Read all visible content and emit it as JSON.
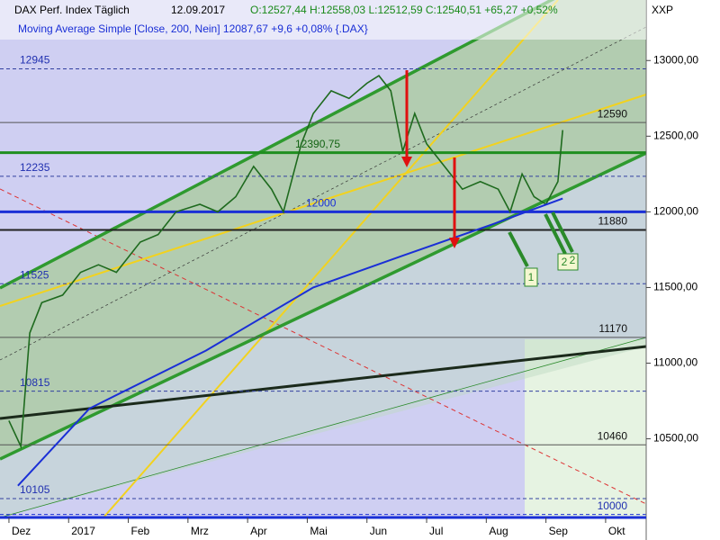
{
  "chart_data": {
    "type": "line",
    "title": "DAX Perf. Index Täglich",
    "date": "12.09.2017",
    "quote": "O:12527,44 H:12558,03 L:12512,59 C:12540,51 +65,27 +0,52%",
    "symbol": "XXP",
    "indicator": "Moving Average Simple [Close, 200, Nein] 12087,67 +9,6 +0,08% {.DAX}",
    "x": [
      0,
      0.2,
      0.35,
      0.55,
      0.9,
      1.2,
      1.5,
      1.8,
      2.2,
      2.5,
      2.8,
      3.2,
      3.5,
      3.8,
      4.1,
      4.4,
      4.6,
      4.9,
      5.1,
      5.4,
      5.7,
      6.0,
      6.2,
      6.4,
      6.6,
      6.8,
      7.0,
      7.3,
      7.6,
      7.9,
      8.2,
      8.4,
      8.6,
      8.8,
      9.0,
      9.2,
      9.28
    ],
    "series": [
      {
        "name": "DAX",
        "color": "#1e6a1e",
        "values": [
          10620,
          10450,
          11200,
          11400,
          11450,
          11600,
          11650,
          11600,
          11800,
          11850,
          12000,
          12050,
          12000,
          12100,
          12300,
          12150,
          12000,
          12450,
          12650,
          12800,
          12750,
          12850,
          12900,
          12800,
          12400,
          12650,
          12450,
          12300,
          12150,
          12200,
          12150,
          12000,
          12250,
          12100,
          12050,
          12200,
          12540
        ]
      },
      {
        "name": "Moving Average Simple",
        "color": "#1a2fd6",
        "x": [
          0.15,
          1.35,
          3.3,
          5.1,
          6.6,
          8.1,
          9.28
        ],
        "values": [
          10190,
          10700,
          11083,
          11500,
          11710,
          11917,
          12087.67
        ]
      }
    ],
    "levels": [
      {
        "value": 12945,
        "label": "12945",
        "side": "left"
      },
      {
        "value": 12590,
        "label": "12590",
        "side": "right"
      },
      {
        "value": 12390.75,
        "label": "12390,75",
        "side": "middle"
      },
      {
        "value": 12235,
        "label": "12235",
        "side": "left"
      },
      {
        "value": 12000,
        "label": "12000",
        "side": "middle"
      },
      {
        "value": 11880,
        "label": "11880",
        "side": "right"
      },
      {
        "value": 11525,
        "label": "11525",
        "side": "left"
      },
      {
        "value": 11170,
        "label": "11170",
        "side": "right"
      },
      {
        "value": 10815,
        "label": "10815",
        "side": "left"
      },
      {
        "value": 10460,
        "label": "10460",
        "side": "right"
      },
      {
        "value": 10105,
        "label": "10105",
        "side": "left"
      },
      {
        "value": 10000,
        "label": "10000",
        "side": "right"
      }
    ],
    "annotations": [
      "1",
      "2",
      "2"
    ],
    "xlim": [
      -0.15,
      10.68
    ],
    "xticks": [
      {
        "value": 0,
        "label": "Dez"
      },
      {
        "value": 1,
        "label": "2017"
      },
      {
        "value": 2,
        "label": "Feb"
      },
      {
        "value": 3,
        "label": "Mrz"
      },
      {
        "value": 4,
        "label": "Apr"
      },
      {
        "value": 5,
        "label": "Mai"
      },
      {
        "value": 6,
        "label": "Jun"
      },
      {
        "value": 7,
        "label": "Jul"
      },
      {
        "value": 8,
        "label": "Aug"
      },
      {
        "value": 9,
        "label": "Sep"
      },
      {
        "value": 10,
        "label": "Okt"
      }
    ],
    "ylim": [
      9980,
      13400
    ],
    "yticks": [
      {
        "value": 10500,
        "label": "10500,00"
      },
      {
        "value": 11000,
        "label": "11000,00"
      },
      {
        "value": 11500,
        "label": "11500,00"
      },
      {
        "value": 12000,
        "label": "12000,00"
      },
      {
        "value": 12500,
        "label": "12500,00"
      },
      {
        "value": 13000,
        "label": "13000,00"
      }
    ]
  }
}
